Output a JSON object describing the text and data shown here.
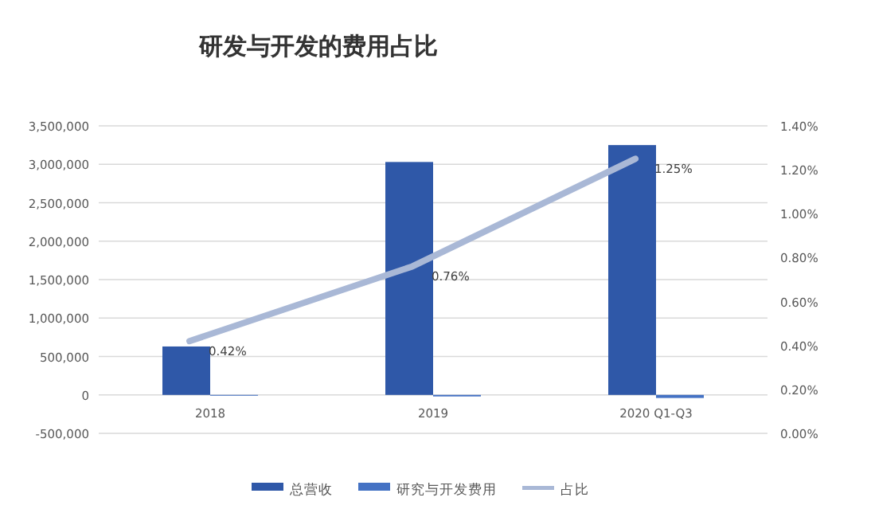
{
  "chart_data": {
    "type": "bar",
    "title": "研发与开发的费用占比",
    "categories": [
      "2018",
      "2019",
      "2020 Q1-Q3"
    ],
    "series": [
      {
        "name": "总营收",
        "color": "#2f58a8",
        "values": [
          630000,
          3030000,
          3250000
        ]
      },
      {
        "name": "研究与开发费用",
        "color": "#4472c4",
        "values": [
          -3000,
          -20000,
          -40000
        ]
      },
      {
        "name": "占比",
        "color": "#a9b8d6",
        "type": "line",
        "axis": "y2",
        "values": [
          0.42,
          0.76,
          1.25
        ],
        "value_labels": [
          "0.42%",
          "0.76%",
          "1.25%"
        ]
      }
    ],
    "ylim": [
      -500000,
      3500000
    ],
    "yticks": [
      {
        "value": -500000,
        "label": "-500,000"
      },
      0,
      {
        "value": 500000,
        "label": "500,000"
      },
      {
        "value": 1000000,
        "label": "1,000,000"
      },
      {
        "value": 1500000,
        "label": "1,500,000"
      },
      {
        "value": 2000000,
        "label": "2,000,000"
      },
      {
        "value": 2500000,
        "label": "2,500,000"
      },
      {
        "value": 3000000,
        "label": "3,000,000"
      },
      {
        "value": 3500000,
        "label": "3,500,000"
      }
    ],
    "y2lim": [
      0,
      1.4
    ],
    "y2ticks": [
      {
        "value": 0,
        "label": "0.00%"
      },
      {
        "value": 0.2,
        "label": "0.20%"
      },
      {
        "value": 0.4,
        "label": "0.40%"
      },
      {
        "value": 0.6,
        "label": "0.60%"
      },
      {
        "value": 0.8,
        "label": "0.80%"
      },
      {
        "value": 1.0,
        "label": "1.00%"
      },
      {
        "value": 1.2,
        "label": "1.20%"
      },
      {
        "value": 1.4,
        "label": "1.40%"
      }
    ],
    "grid": "y",
    "legend": "bottom"
  }
}
